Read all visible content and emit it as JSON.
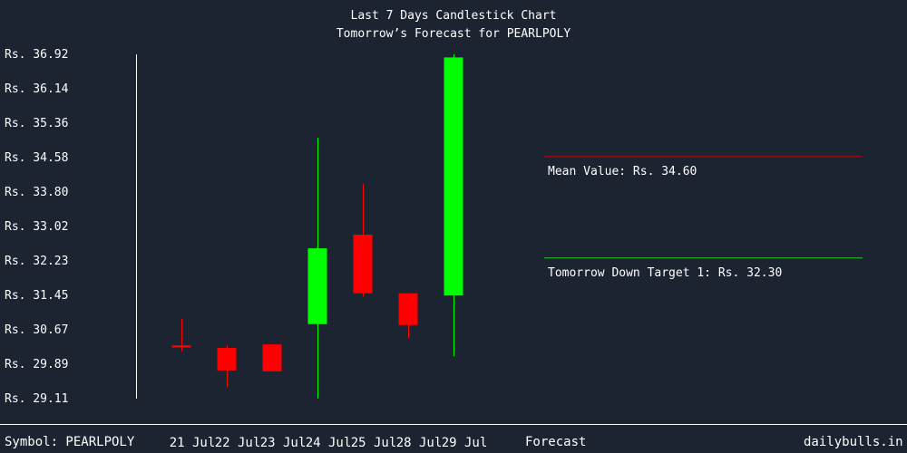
{
  "chart_data": {
    "type": "candlestick",
    "title": "Last 7 Days Candlestick Chart",
    "subtitle": "Tomorrow’s Forecast for PEARLPOLY",
    "y_tick_labels": [
      "Rs. 36.92",
      "Rs. 36.14",
      "Rs. 35.36",
      "Rs. 34.58",
      "Rs. 33.80",
      "Rs. 33.02",
      "Rs. 32.23",
      "Rs. 31.45",
      "Rs. 30.67",
      "Rs. 29.89",
      "Rs. 29.11"
    ],
    "ylim": [
      29.11,
      36.92
    ],
    "categories": [
      "21 Jul",
      "22 Jul",
      "23 Jul",
      "24 Jul",
      "25 Jul",
      "28 Jul",
      "29 Jul"
    ],
    "candles": [
      {
        "date": "21 Jul",
        "open": 30.32,
        "close": 30.27,
        "high": 30.92,
        "low": 30.19
      },
      {
        "date": "22 Jul",
        "open": 30.26,
        "close": 29.75,
        "high": 30.32,
        "low": 29.37
      },
      {
        "date": "23 Jul",
        "open": 30.34,
        "close": 29.73,
        "high": 30.34,
        "low": 29.73
      },
      {
        "date": "24 Jul",
        "open": 30.8,
        "close": 32.52,
        "high": 35.03,
        "low": 29.11
      },
      {
        "date": "25 Jul",
        "open": 32.83,
        "close": 31.5,
        "high": 33.98,
        "low": 31.42
      },
      {
        "date": "28 Jul",
        "open": 31.5,
        "close": 30.78,
        "high": 31.5,
        "low": 30.48
      },
      {
        "date": "29 Jul",
        "open": 31.45,
        "close": 36.85,
        "high": 36.92,
        "low": 30.07
      }
    ],
    "forecast": {
      "label": "Forecast",
      "mean": {
        "text": "Mean Value: Rs. 34.60",
        "value": 34.6,
        "color": "#cc0000"
      },
      "target": {
        "text": "Tomorrow Down Target 1: Rs. 32.30",
        "value": 32.3,
        "color": "#22cc22"
      }
    },
    "colors": {
      "up": "#00ff00",
      "down": "#ff0000",
      "axis": "#ffffff",
      "text": "#ffffff"
    }
  },
  "footer": {
    "symbol": "Symbol: PEARLPOLY",
    "source": "dailybulls.in"
  }
}
